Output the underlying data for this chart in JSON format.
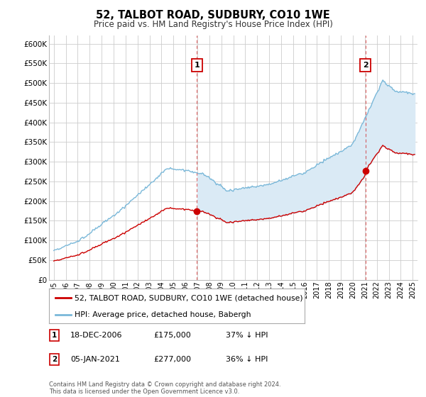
{
  "title": "52, TALBOT ROAD, SUDBURY, CO10 1WE",
  "subtitle": "Price paid vs. HM Land Registry's House Price Index (HPI)",
  "legend_line1": "52, TALBOT ROAD, SUDBURY, CO10 1WE (detached house)",
  "legend_line2": "HPI: Average price, detached house, Babergh",
  "footnote": "Contains HM Land Registry data © Crown copyright and database right 2024.\nThis data is licensed under the Open Government Licence v3.0.",
  "sale1_date": "18-DEC-2006",
  "sale1_price": "£175,000",
  "sale1_note": "37% ↓ HPI",
  "sale2_date": "05-JAN-2021",
  "sale2_price": "£277,000",
  "sale2_note": "36% ↓ HPI",
  "hpi_color": "#7ab8d9",
  "hpi_fill_color": "#daeaf5",
  "sale_color": "#cc0000",
  "dashed_color": "#cc0000",
  "ylim": [
    0,
    620000
  ],
  "yticks": [
    0,
    50000,
    100000,
    150000,
    200000,
    250000,
    300000,
    350000,
    400000,
    450000,
    500000,
    550000,
    600000
  ],
  "xlim_min": 1994.6,
  "xlim_max": 2025.4,
  "background_color": "#ffffff",
  "grid_color": "#cccccc",
  "sale1_year": 2006.96,
  "sale1_val": 175000,
  "sale2_year": 2021.04,
  "sale2_val": 277000
}
